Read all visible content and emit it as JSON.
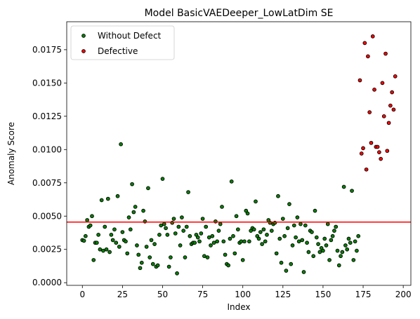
{
  "chart_data": {
    "type": "scatter",
    "title": "Model BasicVAEDeeper_LowLatDim SE",
    "xlabel": "Index",
    "ylabel": "Anomaly Score",
    "xlim": [
      -9.75,
      204.75
    ],
    "ylim": [
      -0.0002,
      0.0196
    ],
    "xticks": [
      0,
      25,
      50,
      75,
      100,
      125,
      150,
      175,
      200
    ],
    "xtick_labels": [
      "0",
      "25",
      "50",
      "75",
      "100",
      "125",
      "150",
      "175",
      "200"
    ],
    "yticks": [
      0.0,
      0.0025,
      0.005,
      0.0075,
      0.01,
      0.0125,
      0.015,
      0.0175
    ],
    "ytick_labels": [
      "0.0000",
      "0.0025",
      "0.0050",
      "0.0075",
      "0.0100",
      "0.0125",
      "0.0150",
      "0.0175"
    ],
    "threshold": {
      "y": 0.00455,
      "color": "#ff0000"
    },
    "legend": {
      "position": "top-left"
    },
    "series": [
      {
        "name": "Without Defect",
        "color": "#008000",
        "points": [
          [
            0,
            0.0032
          ],
          [
            1,
            0.00315
          ],
          [
            2,
            0.0035
          ],
          [
            3,
            0.0047
          ],
          [
            4,
            0.0042
          ],
          [
            5,
            0.0043
          ],
          [
            6,
            0.005
          ],
          [
            7,
            0.0017
          ],
          [
            8,
            0.003
          ],
          [
            9,
            0.003
          ],
          [
            10,
            0.0036
          ],
          [
            11,
            0.0025
          ],
          [
            12,
            0.0062
          ],
          [
            13,
            0.0024
          ],
          [
            14,
            0.0042
          ],
          [
            15,
            0.0025
          ],
          [
            16,
            0.0063
          ],
          [
            17,
            0.0023
          ],
          [
            18,
            0.0036
          ],
          [
            19,
            0.0032
          ],
          [
            20,
            0.004
          ],
          [
            21,
            0.003
          ],
          [
            22,
            0.0065
          ],
          [
            23,
            0.0027
          ],
          [
            24,
            0.0104
          ],
          [
            25,
            0.0038
          ],
          [
            26,
            0.0032
          ],
          [
            27,
            0.0031
          ],
          [
            28,
            0.0022
          ],
          [
            29,
            0.0049
          ],
          [
            30,
            0.004
          ],
          [
            31,
            0.0074
          ],
          [
            32,
            0.0053
          ],
          [
            33,
            0.0057
          ],
          [
            34,
            0.0028
          ],
          [
            35,
            0.0021
          ],
          [
            36,
            0.0011
          ],
          [
            37,
            0.0015
          ],
          [
            38,
            0.0054
          ],
          [
            39,
            0.0046
          ],
          [
            40,
            0.0027
          ],
          [
            41,
            0.0071
          ],
          [
            42,
            0.0019
          ],
          [
            43,
            0.0032
          ],
          [
            44,
            0.0014
          ],
          [
            45,
            0.0029
          ],
          [
            46,
            0.0012
          ],
          [
            47,
            0.0013
          ],
          [
            48,
            0.0036
          ],
          [
            49,
            0.0043
          ],
          [
            50,
            0.0078
          ],
          [
            51,
            0.0044
          ],
          [
            52,
            0.0041
          ],
          [
            53,
            0.0036
          ],
          [
            54,
            0.0012
          ],
          [
            55,
            0.0019
          ],
          [
            56,
            0.0045
          ],
          [
            57,
            0.0048
          ],
          [
            58,
            0.0037
          ],
          [
            59,
            0.0007
          ],
          [
            60,
            0.0042
          ],
          [
            61,
            0.0028
          ],
          [
            62,
            0.0049
          ],
          [
            63,
            0.0039
          ],
          [
            64,
            0.0019
          ],
          [
            65,
            0.0042
          ],
          [
            66,
            0.0068
          ],
          [
            67,
            0.0035
          ],
          [
            68,
            0.0029
          ],
          [
            69,
            0.003
          ],
          [
            70,
            0.003
          ],
          [
            71,
            0.0036
          ],
          [
            72,
            0.0034
          ],
          [
            73,
            0.0031
          ],
          [
            74,
            0.0037
          ],
          [
            75,
            0.0048
          ],
          [
            76,
            0.002
          ],
          [
            77,
            0.0042
          ],
          [
            78,
            0.0019
          ],
          [
            79,
            0.0034
          ],
          [
            80,
            0.0028
          ],
          [
            81,
            0.0035
          ],
          [
            82,
            0.003
          ],
          [
            83,
            0.0046
          ],
          [
            84,
            0.0031
          ],
          [
            85,
            0.0039
          ],
          [
            86,
            0.0044
          ],
          [
            87,
            0.0057
          ],
          [
            88,
            0.0031
          ],
          [
            89,
            0.0021
          ],
          [
            90,
            0.0014
          ],
          [
            91,
            0.0013
          ],
          [
            92,
            0.0033
          ],
          [
            93,
            0.0076
          ],
          [
            94,
            0.0035
          ],
          [
            95,
            0.0022
          ],
          [
            96,
            0.005
          ],
          [
            97,
            0.004
          ],
          [
            98,
            0.003
          ],
          [
            99,
            0.0031
          ],
          [
            100,
            0.0017
          ],
          [
            101,
            0.0031
          ],
          [
            102,
            0.0054
          ],
          [
            103,
            0.0052
          ],
          [
            104,
            0.0031
          ],
          [
            105,
            0.0039
          ],
          [
            106,
            0.0041
          ],
          [
            107,
            0.004
          ],
          [
            108,
            0.0061
          ],
          [
            109,
            0.0035
          ],
          [
            110,
            0.0033
          ],
          [
            111,
            0.0038
          ],
          [
            112,
            0.0029
          ],
          [
            113,
            0.004
          ],
          [
            114,
            0.0031
          ],
          [
            115,
            0.0036
          ],
          [
            116,
            0.0047
          ],
          [
            117,
            0.0045
          ],
          [
            118,
            0.0039
          ],
          [
            119,
            0.0044
          ],
          [
            120,
            0.0045
          ],
          [
            121,
            0.0022
          ],
          [
            122,
            0.0065
          ],
          [
            123,
            0.0033
          ],
          [
            124,
            0.0015
          ],
          [
            125,
            0.0048
          ],
          [
            126,
            0.0035
          ],
          [
            127,
            0.0009
          ],
          [
            128,
            0.0041
          ],
          [
            129,
            0.0059
          ],
          [
            130,
            0.0014
          ],
          [
            131,
            0.0028
          ],
          [
            132,
            0.0043
          ],
          [
            133,
            0.0034
          ],
          [
            134,
            0.0049
          ],
          [
            135,
            0.0031
          ],
          [
            136,
            0.0044
          ],
          [
            137,
            0.0032
          ],
          [
            138,
            0.0008
          ],
          [
            139,
            0.0043
          ],
          [
            140,
            0.003
          ],
          [
            141,
            0.0023
          ],
          [
            142,
            0.0039
          ],
          [
            143,
            0.0038
          ],
          [
            144,
            0.002
          ],
          [
            145,
            0.0054
          ],
          [
            146,
            0.0034
          ],
          [
            147,
            0.0029
          ],
          [
            148,
            0.0023
          ],
          [
            149,
            0.0026
          ],
          [
            150,
            0.0024
          ],
          [
            151,
            0.0033
          ],
          [
            152,
            0.0028
          ],
          [
            153,
            0.0044
          ],
          [
            154,
            0.0017
          ],
          [
            155,
            0.0032
          ],
          [
            156,
            0.0035
          ],
          [
            157,
            0.0039
          ],
          [
            158,
            0.0042
          ],
          [
            159,
            0.0024
          ],
          [
            160,
            0.0013
          ],
          [
            161,
            0.002
          ],
          [
            162,
            0.0023
          ],
          [
            163,
            0.0072
          ],
          [
            164,
            0.0028
          ],
          [
            165,
            0.0025
          ],
          [
            166,
            0.0033
          ],
          [
            167,
            0.003
          ],
          [
            168,
            0.0069
          ],
          [
            169,
            0.0017
          ],
          [
            170,
            0.0031
          ],
          [
            171,
            0.0024
          ],
          [
            172,
            0.0035
          ]
        ]
      },
      {
        "name": "Defective",
        "color": "#ff0000",
        "points": [
          [
            173,
            0.0152
          ],
          [
            174,
            0.0097
          ],
          [
            175,
            0.0101
          ],
          [
            176,
            0.018
          ],
          [
            177,
            0.0085
          ],
          [
            178,
            0.017
          ],
          [
            179,
            0.0128
          ],
          [
            180,
            0.0105
          ],
          [
            181,
            0.0185
          ],
          [
            182,
            0.0145
          ],
          [
            183,
            0.0102
          ],
          [
            184,
            0.0102
          ],
          [
            185,
            0.0098
          ],
          [
            186,
            0.0093
          ],
          [
            187,
            0.015
          ],
          [
            188,
            0.0125
          ],
          [
            189,
            0.0172
          ],
          [
            190,
            0.0099
          ],
          [
            191,
            0.012
          ],
          [
            192,
            0.0133
          ],
          [
            193,
            0.0143
          ],
          [
            194,
            0.013
          ],
          [
            195,
            0.0155
          ]
        ]
      }
    ]
  }
}
